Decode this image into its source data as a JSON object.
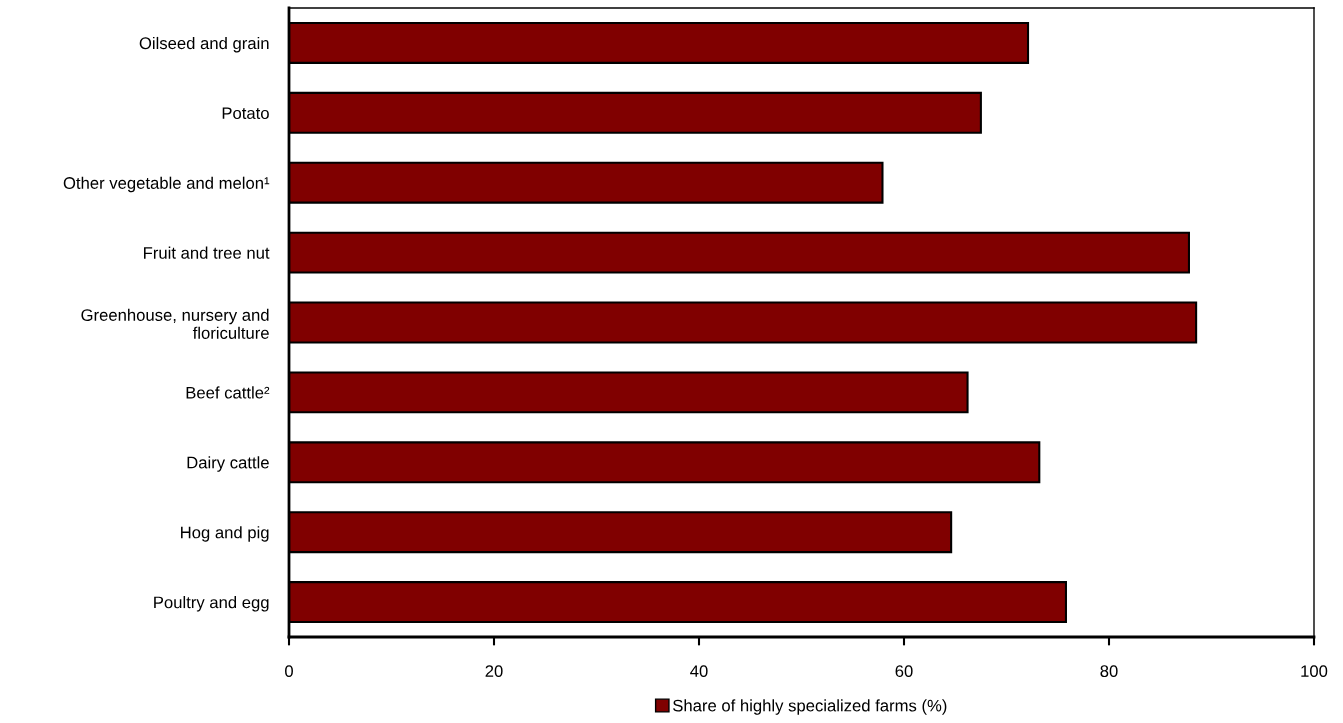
{
  "chart_data": {
    "type": "bar",
    "orientation": "horizontal",
    "categories": [
      "Oilseed and grain",
      "Potato",
      "Other vegetable and melon¹",
      "Fruit and tree nut",
      "Greenhouse, nursery and\nfloriculture",
      "Beef cattle²",
      "Dairy cattle",
      "Hog and pig",
      "Poultry and egg"
    ],
    "series": [
      {
        "name": "Share of highly specialized farms (%)",
        "color": "#800000",
        "values": [
          72.1,
          67.5,
          57.9,
          87.8,
          88.5,
          66.2,
          73.2,
          64.6,
          75.8
        ]
      }
    ],
    "xlim": [
      0,
      100
    ],
    "xticks": [
      0,
      20,
      40,
      60,
      80,
      100
    ],
    "grid": false,
    "legend": "bottom"
  }
}
